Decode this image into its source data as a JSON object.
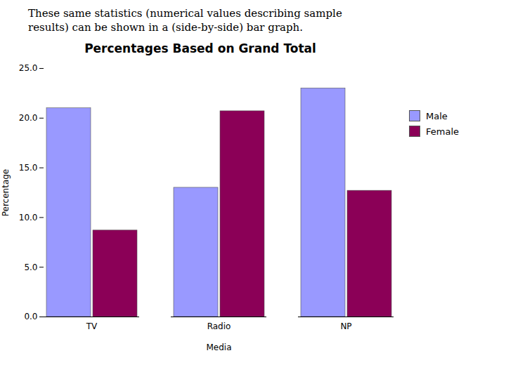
{
  "chart_data": {
    "type": "bar",
    "title": "Percentages Based on Grand Total",
    "annotation": "These same statistics (numerical values describing sample\nresults) can be shown in a (side-by-side) bar graph.",
    "xlabel": "Media",
    "ylabel": "Percentage",
    "categories": [
      "TV",
      "Radio",
      "NP"
    ],
    "series": [
      {
        "name": "Male",
        "color": "#9999ff",
        "values": [
          21.0,
          13.0,
          23.0
        ]
      },
      {
        "name": "Female",
        "color": "#8b0057",
        "values": [
          8.7,
          20.7,
          12.7
        ]
      }
    ],
    "ylim": [
      0,
      25.0
    ],
    "yticks": [
      {
        "value": 0,
        "label": "0.0"
      },
      {
        "value": 5,
        "label": "5.0"
      },
      {
        "value": 10,
        "label": "10.0"
      },
      {
        "value": 15,
        "label": "15.0"
      },
      {
        "value": 20,
        "label": "20.0"
      },
      {
        "value": 25,
        "label": "25.0"
      }
    ],
    "grid": false,
    "legend": "right"
  }
}
